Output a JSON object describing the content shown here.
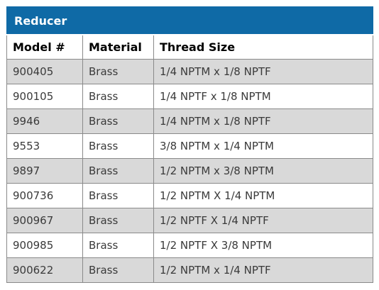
{
  "title": "Reducer",
  "headers": [
    "Model #",
    "Material",
    "Thread Size"
  ],
  "rows": [
    [
      "900405",
      "Brass",
      "1/4 NPTM x 1/8 NPTF"
    ],
    [
      "900105",
      "Brass",
      "1/4 NPTF x 1/8 NPTM"
    ],
    [
      "9946",
      "Brass",
      "1/4 NPTM x 1/8 NPTF"
    ],
    [
      "9553",
      "Brass",
      "3/8 NPTM x 1/4 NPTM"
    ],
    [
      "9897",
      "Brass",
      "1/2 NPTM x 3/8 NPTM"
    ],
    [
      "900736",
      "Brass",
      "1/2 NPTM X 1/4 NPTM"
    ],
    [
      "900967",
      "Brass",
      "1/2 NPTF X 1/4 NPTF"
    ],
    [
      "900985",
      "Brass",
      "1/2 NPTF X 3/8 NPTM"
    ],
    [
      "900622",
      "Brass",
      "1/2 NPTM x 1/4 NPTF"
    ]
  ],
  "colors": {
    "title_bg": "#0f6aa6",
    "shaded_row": "#d9d9d9"
  }
}
